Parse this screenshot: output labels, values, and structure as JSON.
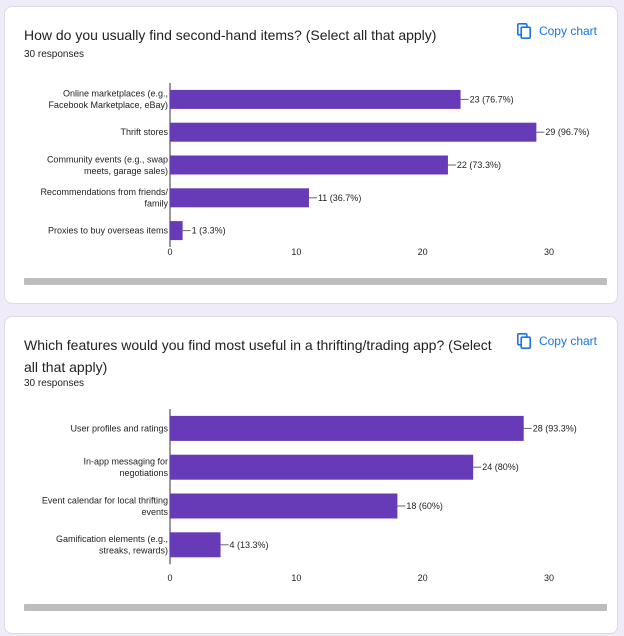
{
  "copy_label": "Copy chart",
  "colors": {
    "bar": "#673ab7",
    "accent": "#1a73e8",
    "axis": "#333333",
    "text": "#202124"
  },
  "chart_data": [
    {
      "type": "bar",
      "orientation": "horizontal",
      "title": "How do you usually find second-hand items? (Select all that apply)",
      "responses": "30 responses",
      "categories": [
        [
          "Online marketplaces (e.g.,",
          "Facebook Marketplace, eBay)"
        ],
        [
          "Thrift stores"
        ],
        [
          "Community events (e.g., swap",
          "meets, garage sales)"
        ],
        [
          "Recommendations from friends/",
          "family"
        ],
        [
          "Proxies to buy overseas items"
        ]
      ],
      "values": [
        23,
        29,
        22,
        11,
        1
      ],
      "value_labels": [
        "23 (76.7%)",
        "29 (96.7%)",
        "22 (73.3%)",
        "11 (36.7%)",
        "1 (3.3%)"
      ],
      "xlim": [
        0,
        30
      ],
      "ticks": [
        "0",
        "10",
        "20",
        "30"
      ]
    },
    {
      "type": "bar",
      "orientation": "horizontal",
      "title": "Which features would you find most useful in a thrifting/trading app? (Select all that apply)",
      "responses": "30 responses",
      "categories": [
        [
          "User profiles and ratings"
        ],
        [
          "In-app messaging for",
          "negotiations"
        ],
        [
          "Event calendar for local thrifting",
          "events"
        ],
        [
          "Gamification elements (e.g.,",
          "streaks, rewards)"
        ]
      ],
      "values": [
        28,
        24,
        18,
        4
      ],
      "value_labels": [
        "28 (93.3%)",
        "24 (80%)",
        "18 (60%)",
        "4 (13.3%)"
      ],
      "xlim": [
        0,
        30
      ],
      "ticks": [
        "0",
        "10",
        "20",
        "30"
      ]
    }
  ]
}
